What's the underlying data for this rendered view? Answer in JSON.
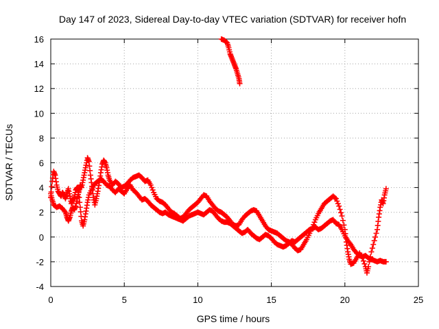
{
  "chart_data": {
    "type": "scatter",
    "title": "Day 147 of 2023, Sidereal Day-to-day VTEC variation (SDTVAR) for receiver hofn",
    "xlabel": "GPS time / hours",
    "ylabel": "SDTVAR / TECUs",
    "xlim": [
      0,
      25
    ],
    "ylim": [
      -4,
      16
    ],
    "xticks": [
      0,
      5,
      10,
      15,
      20,
      25
    ],
    "yticks": [
      -4,
      -2,
      0,
      2,
      4,
      6,
      8,
      10,
      12,
      14,
      16
    ],
    "grid": true,
    "marker": "+",
    "color": "#ff0000",
    "series": [
      {
        "name": "track-1",
        "points": [
          [
            0.0,
            3.2
          ],
          [
            0.1,
            4.5
          ],
          [
            0.2,
            5.3
          ],
          [
            0.3,
            5.0
          ],
          [
            0.4,
            4.2
          ],
          [
            0.5,
            3.7
          ],
          [
            0.6,
            3.5
          ],
          [
            0.7,
            3.3
          ],
          [
            0.8,
            3.6
          ],
          [
            0.9,
            3.4
          ],
          [
            1.0,
            3.1
          ],
          [
            1.1,
            3.5
          ],
          [
            1.2,
            3.9
          ],
          [
            1.3,
            3.3
          ],
          [
            1.4,
            2.7
          ],
          [
            1.5,
            3.0
          ],
          [
            1.6,
            3.2
          ],
          [
            1.7,
            3.8
          ],
          [
            1.8,
            4.0
          ],
          [
            1.9,
            3.7
          ],
          [
            2.0,
            4.2
          ],
          [
            2.1,
            4.0
          ],
          [
            2.2,
            4.6
          ],
          [
            2.3,
            5.2
          ],
          [
            2.4,
            5.8
          ],
          [
            2.5,
            6.4
          ],
          [
            2.6,
            6.1
          ],
          [
            2.7,
            5.0
          ],
          [
            2.8,
            4.1
          ],
          [
            2.9,
            3.2
          ],
          [
            3.0,
            2.6
          ],
          [
            3.1,
            3.1
          ],
          [
            3.2,
            3.7
          ],
          [
            3.3,
            4.4
          ],
          [
            3.4,
            5.2
          ],
          [
            3.5,
            5.9
          ],
          [
            3.6,
            6.2
          ],
          [
            3.7,
            6.0
          ],
          [
            3.8,
            5.6
          ],
          [
            3.9,
            5.0
          ],
          [
            4.0,
            4.6
          ],
          [
            4.2,
            4.2
          ],
          [
            4.4,
            4.5
          ],
          [
            4.6,
            4.3
          ],
          [
            4.8,
            4.0
          ],
          [
            5.0,
            4.1
          ],
          [
            5.2,
            4.3
          ],
          [
            5.4,
            4.6
          ],
          [
            5.6,
            4.8
          ],
          [
            5.8,
            4.9
          ],
          [
            6.0,
            5.0
          ],
          [
            6.2,
            4.8
          ],
          [
            6.4,
            4.5
          ],
          [
            6.6,
            4.6
          ],
          [
            6.8,
            4.2
          ],
          [
            7.0,
            3.6
          ],
          [
            7.2,
            3.1
          ],
          [
            7.4,
            2.9
          ],
          [
            7.6,
            2.8
          ],
          [
            7.8,
            2.6
          ],
          [
            8.0,
            2.3
          ],
          [
            8.2,
            2.0
          ],
          [
            8.4,
            1.9
          ],
          [
            8.6,
            1.7
          ],
          [
            8.8,
            1.5
          ],
          [
            9.0,
            1.6
          ],
          [
            9.2,
            1.9
          ],
          [
            9.4,
            2.2
          ],
          [
            9.6,
            2.4
          ],
          [
            9.8,
            2.6
          ],
          [
            10.0,
            2.8
          ],
          [
            10.2,
            3.1
          ],
          [
            10.4,
            3.4
          ],
          [
            10.6,
            3.3
          ],
          [
            10.8,
            2.9
          ],
          [
            11.0,
            2.6
          ],
          [
            11.2,
            2.3
          ],
          [
            11.4,
            2.1
          ],
          [
            11.6,
            2.0
          ],
          [
            11.8,
            1.8
          ],
          [
            12.0,
            1.6
          ],
          [
            12.2,
            1.3
          ],
          [
            12.4,
            1.0
          ],
          [
            12.6,
            0.9
          ],
          [
            12.8,
            1.0
          ],
          [
            13.0,
            1.4
          ],
          [
            13.2,
            1.7
          ],
          [
            13.4,
            1.9
          ],
          [
            13.6,
            2.1
          ],
          [
            13.8,
            2.2
          ],
          [
            14.0,
            2.1
          ],
          [
            14.2,
            1.7
          ],
          [
            14.4,
            1.3
          ],
          [
            14.6,
            0.9
          ],
          [
            14.8,
            0.6
          ],
          [
            15.0,
            0.5
          ],
          [
            15.2,
            0.4
          ],
          [
            15.4,
            0.3
          ],
          [
            15.6,
            0.1
          ],
          [
            15.8,
            -0.1
          ],
          [
            16.0,
            -0.3
          ],
          [
            16.2,
            -0.4
          ],
          [
            16.4,
            -0.6
          ],
          [
            16.6,
            -0.9
          ],
          [
            16.8,
            -1.1
          ],
          [
            17.0,
            -1.0
          ],
          [
            17.2,
            -0.6
          ],
          [
            17.4,
            -0.2
          ],
          [
            17.6,
            0.3
          ],
          [
            17.8,
            0.8
          ],
          [
            18.0,
            1.4
          ],
          [
            18.2,
            1.9
          ],
          [
            18.4,
            2.3
          ],
          [
            18.6,
            2.7
          ],
          [
            18.8,
            2.9
          ],
          [
            19.0,
            3.1
          ],
          [
            19.2,
            3.3
          ],
          [
            19.4,
            3.1
          ],
          [
            19.6,
            2.5
          ],
          [
            19.8,
            1.7
          ],
          [
            20.0,
            0.6
          ],
          [
            20.1,
            -0.4
          ],
          [
            20.2,
            -1.2
          ],
          [
            20.3,
            -1.8
          ],
          [
            20.4,
            -2.2
          ],
          [
            20.6,
            -2.1
          ],
          [
            20.8,
            -1.7
          ],
          [
            21.0,
            -1.3
          ],
          [
            21.2,
            -1.7
          ],
          [
            21.4,
            -2.4
          ],
          [
            21.5,
            -2.9
          ],
          [
            21.6,
            -2.4
          ],
          [
            21.8,
            -1.2
          ],
          [
            22.0,
            -0.3
          ],
          [
            22.2,
            0.6
          ],
          [
            22.3,
            1.6
          ],
          [
            22.4,
            2.4
          ],
          [
            22.5,
            3.0
          ],
          [
            22.6,
            2.7
          ],
          [
            22.7,
            3.4
          ],
          [
            22.8,
            3.9
          ]
        ]
      },
      {
        "name": "track-2",
        "points": [
          [
            0.0,
            3.5
          ],
          [
            0.1,
            3.0
          ],
          [
            0.2,
            2.6
          ],
          [
            0.4,
            2.4
          ],
          [
            0.6,
            2.5
          ],
          [
            0.8,
            2.3
          ],
          [
            1.0,
            2.0
          ],
          [
            1.1,
            1.6
          ],
          [
            1.2,
            1.3
          ],
          [
            1.3,
            1.6
          ],
          [
            1.4,
            2.1
          ],
          [
            1.5,
            2.4
          ],
          [
            1.6,
            2.2
          ],
          [
            1.7,
            2.5
          ],
          [
            1.8,
            3.1
          ],
          [
            1.9,
            3.6
          ],
          [
            2.0,
            2.4
          ],
          [
            2.1,
            1.3
          ],
          [
            2.2,
            0.9
          ],
          [
            2.3,
            1.4
          ],
          [
            2.4,
            2.1
          ],
          [
            2.5,
            2.8
          ],
          [
            2.6,
            3.4
          ],
          [
            2.8,
            3.9
          ],
          [
            3.0,
            4.3
          ],
          [
            3.2,
            4.5
          ],
          [
            3.4,
            4.7
          ],
          [
            3.6,
            4.5
          ],
          [
            3.8,
            4.2
          ],
          [
            4.0,
            4.1
          ],
          [
            4.2,
            3.8
          ],
          [
            4.4,
            3.6
          ],
          [
            4.6,
            3.9
          ],
          [
            4.8,
            3.7
          ],
          [
            5.0,
            3.5
          ],
          [
            5.2,
            3.9
          ],
          [
            5.4,
            4.2
          ],
          [
            5.6,
            3.8
          ],
          [
            5.8,
            3.6
          ],
          [
            6.0,
            3.3
          ],
          [
            6.2,
            3.0
          ],
          [
            6.4,
            3.1
          ],
          [
            6.6,
            2.9
          ],
          [
            6.8,
            2.6
          ],
          [
            7.0,
            2.4
          ],
          [
            7.2,
            2.2
          ],
          [
            7.4,
            2.0
          ],
          [
            7.6,
            1.9
          ],
          [
            7.8,
            2.0
          ],
          [
            8.0,
            1.8
          ],
          [
            8.2,
            1.7
          ],
          [
            8.4,
            1.6
          ],
          [
            8.6,
            1.5
          ],
          [
            8.8,
            1.4
          ],
          [
            9.0,
            1.3
          ],
          [
            9.2,
            1.5
          ],
          [
            9.4,
            1.7
          ],
          [
            9.6,
            1.8
          ],
          [
            9.8,
            1.9
          ],
          [
            10.0,
            2.0
          ],
          [
            10.2,
            1.9
          ],
          [
            10.4,
            1.8
          ],
          [
            10.6,
            2.0
          ],
          [
            10.8,
            2.2
          ],
          [
            11.0,
            2.1
          ],
          [
            11.2,
            1.8
          ],
          [
            11.4,
            1.5
          ],
          [
            11.6,
            1.3
          ],
          [
            11.8,
            1.2
          ],
          [
            12.0,
            1.2
          ],
          [
            12.2,
            1.1
          ],
          [
            12.4,
            0.9
          ],
          [
            12.6,
            0.7
          ],
          [
            12.8,
            0.5
          ],
          [
            13.0,
            0.3
          ],
          [
            13.2,
            0.4
          ],
          [
            13.4,
            0.6
          ],
          [
            13.6,
            0.3
          ],
          [
            13.8,
            0.1
          ],
          [
            14.0,
            -0.1
          ],
          [
            14.2,
            -0.2
          ],
          [
            14.4,
            0.0
          ],
          [
            14.6,
            0.2
          ],
          [
            14.8,
            0.1
          ],
          [
            15.0,
            -0.1
          ],
          [
            15.2,
            -0.4
          ],
          [
            15.4,
            -0.6
          ],
          [
            15.6,
            -0.7
          ],
          [
            15.8,
            -0.8
          ],
          [
            16.0,
            -0.7
          ],
          [
            16.2,
            -0.5
          ],
          [
            16.4,
            -0.3
          ],
          [
            16.6,
            -0.4
          ],
          [
            16.8,
            -0.2
          ],
          [
            17.0,
            0.0
          ],
          [
            17.2,
            0.2
          ],
          [
            17.4,
            0.4
          ],
          [
            17.6,
            0.6
          ],
          [
            17.8,
            0.7
          ],
          [
            18.0,
            0.8
          ],
          [
            18.2,
            0.6
          ],
          [
            18.4,
            0.7
          ],
          [
            18.6,
            0.9
          ],
          [
            18.8,
            1.1
          ],
          [
            19.0,
            1.3
          ],
          [
            19.2,
            1.4
          ],
          [
            19.4,
            1.1
          ],
          [
            19.6,
            1.0
          ],
          [
            19.8,
            0.6
          ],
          [
            20.0,
            0.1
          ],
          [
            20.2,
            -0.3
          ],
          [
            20.4,
            -0.6
          ],
          [
            20.6,
            -1.0
          ],
          [
            20.8,
            -1.3
          ],
          [
            21.0,
            -1.5
          ],
          [
            21.2,
            -1.6
          ],
          [
            21.4,
            -1.5
          ],
          [
            21.6,
            -1.7
          ],
          [
            21.8,
            -1.8
          ],
          [
            22.0,
            -1.9
          ],
          [
            22.2,
            -2.0
          ],
          [
            22.4,
            -1.9
          ],
          [
            22.6,
            -2.0
          ],
          [
            22.8,
            -2.0
          ]
        ]
      },
      {
        "name": "track-3",
        "points": [
          [
            11.6,
            16.0
          ],
          [
            11.8,
            15.9
          ],
          [
            12.0,
            15.7
          ],
          [
            12.1,
            15.3
          ],
          [
            12.2,
            14.8
          ],
          [
            12.3,
            14.5
          ],
          [
            12.4,
            14.2
          ],
          [
            12.5,
            13.9
          ],
          [
            12.6,
            13.6
          ],
          [
            12.7,
            13.2
          ],
          [
            12.8,
            12.8
          ],
          [
            12.85,
            12.4
          ]
        ]
      }
    ]
  }
}
